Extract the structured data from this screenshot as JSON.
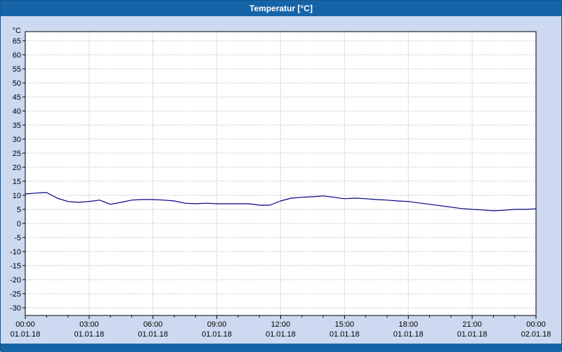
{
  "window": {
    "title": "Temperatur [°C]"
  },
  "colors": {
    "titlebar": "#1664a8",
    "background": "#ccd9f0",
    "plot_bg": "#ffffff",
    "grid": "#a6a6a6",
    "axis": "#000000",
    "line": "#000080",
    "title_text": "#ffffff"
  },
  "chart_data": {
    "type": "line",
    "title": "Temperatur [°C]",
    "xlabel": "",
    "ylabel": "°C",
    "ylim": [
      -30,
      65
    ],
    "ytick_step": 5,
    "grid": true,
    "legend": "none",
    "xticks": [
      {
        "time": "00:00",
        "date": "01.01.18"
      },
      {
        "time": "03:00",
        "date": "01.01.18"
      },
      {
        "time": "06:00",
        "date": "01.01.18"
      },
      {
        "time": "09:00",
        "date": "01.01.18"
      },
      {
        "time": "12:00",
        "date": "01.01.18"
      },
      {
        "time": "15:00",
        "date": "01.01.18"
      },
      {
        "time": "18:00",
        "date": "01.01.18"
      },
      {
        "time": "21:00",
        "date": "01.01.18"
      },
      {
        "time": "00:00",
        "date": "02.01.18"
      }
    ],
    "series": [
      {
        "name": "Temperatur",
        "x": [
          0,
          0.5,
          1,
          1.5,
          2,
          2.5,
          3,
          3.5,
          4,
          4.5,
          5,
          5.5,
          6,
          6.5,
          7,
          7.5,
          8,
          8.5,
          9,
          9.5,
          10,
          10.5,
          11,
          11.5,
          12,
          12.5,
          13,
          13.5,
          14,
          14.5,
          15,
          15.5,
          16,
          16.5,
          17,
          17.5,
          18,
          18.5,
          19,
          19.5,
          20,
          20.5,
          21,
          21.5,
          22,
          22.5,
          23,
          23.5,
          24
        ],
        "values": [
          10.5,
          10.8,
          11.0,
          9.0,
          7.8,
          7.5,
          7.8,
          8.3,
          6.8,
          7.5,
          8.3,
          8.5,
          8.5,
          8.3,
          8.0,
          7.2,
          7.0,
          7.2,
          7.0,
          7.0,
          7.0,
          7.0,
          6.5,
          6.5,
          8.0,
          9.0,
          9.3,
          9.5,
          9.8,
          9.3,
          8.8,
          9.0,
          8.8,
          8.5,
          8.3,
          8.0,
          7.8,
          7.3,
          6.8,
          6.3,
          5.8,
          5.3,
          5.0,
          4.8,
          4.5,
          4.7,
          5.0,
          5.0,
          5.2
        ]
      }
    ]
  }
}
